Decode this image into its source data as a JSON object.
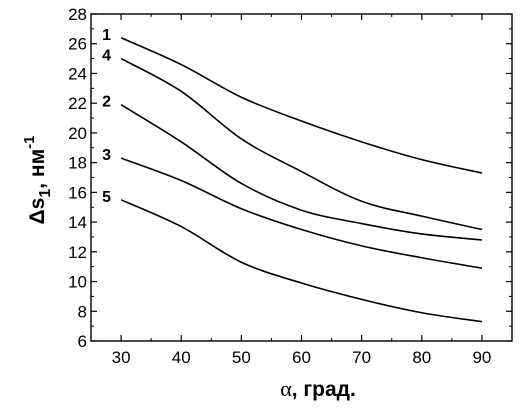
{
  "chart_data": {
    "type": "line",
    "xlabel_symbol": "α",
    "xlabel_text": ", град.",
    "ylabel_base": "Δs",
    "ylabel_sub": "1",
    "ylabel_unit": ", нм",
    "ylabel_sup": "-1",
    "xlim": [
      25,
      95
    ],
    "ylim": [
      6,
      28
    ],
    "x_ticks": [
      30,
      40,
      50,
      60,
      70,
      80,
      90
    ],
    "y_ticks": [
      6,
      8,
      10,
      12,
      14,
      16,
      18,
      20,
      22,
      24,
      26,
      28
    ],
    "grid": false,
    "series": [
      {
        "name": "1",
        "x": [
          30,
          40,
          50,
          60,
          70,
          80,
          90
        ],
        "y": [
          26.4,
          24.6,
          22.4,
          20.8,
          19.4,
          18.2,
          17.3
        ]
      },
      {
        "name": "4",
        "x": [
          30,
          40,
          50,
          60,
          70,
          80,
          90
        ],
        "y": [
          25.0,
          22.8,
          19.6,
          17.4,
          15.4,
          14.4,
          13.5
        ]
      },
      {
        "name": "2",
        "x": [
          30,
          40,
          50,
          60,
          70,
          80,
          90
        ],
        "y": [
          21.9,
          19.4,
          16.6,
          14.8,
          13.9,
          13.2,
          12.8
        ]
      },
      {
        "name": "3",
        "x": [
          30,
          40,
          50,
          60,
          70,
          80,
          90
        ],
        "y": [
          18.3,
          16.8,
          14.9,
          13.5,
          12.4,
          11.6,
          10.9
        ]
      },
      {
        "name": "5",
        "x": [
          30,
          40,
          50,
          60,
          70,
          80,
          90
        ],
        "y": [
          15.5,
          13.7,
          11.3,
          9.9,
          8.8,
          7.9,
          7.3
        ]
      }
    ]
  }
}
